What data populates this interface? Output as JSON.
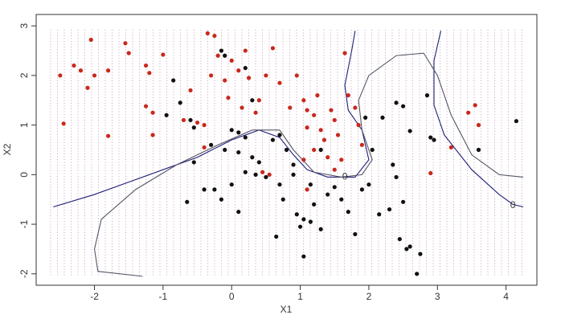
{
  "chart_data": {
    "type": "scatter",
    "xlabel": "X1",
    "ylabel": "X2",
    "xlim": [
      -2.85,
      4.45
    ],
    "ylim": [
      -2.23,
      3.23
    ],
    "xticks": [
      -2,
      -1,
      0,
      1,
      2,
      3,
      4
    ],
    "yticks": [
      -2,
      -1,
      0,
      1,
      2,
      3
    ],
    "series": [
      {
        "color": "#c8281c",
        "x": [
          -2.5,
          -2.45,
          -2.3,
          -2.2,
          -2.05,
          -2.0,
          -2.1,
          -1.8,
          -1.55,
          -1.5,
          -1.25,
          -1.2,
          -1.25,
          -1.15,
          -1.0,
          -1.15,
          -1.8,
          -0.7,
          -0.6,
          -0.5,
          -0.4,
          -0.35,
          -0.25,
          -0.3,
          -0.2,
          -0.1,
          -0.05,
          0.0,
          0.1,
          0.2,
          0.25,
          0.15,
          0.35,
          0.4,
          0.5,
          0.6,
          0.7,
          0.85,
          0.95,
          1.05,
          1.1,
          1.2,
          1.25,
          1.3,
          1.35,
          1.45,
          1.5,
          1.55,
          1.6,
          1.65,
          1.7,
          1.8,
          1.9,
          1.85,
          1.1,
          1.2,
          1.4,
          1.5,
          2.9,
          3.2,
          3.55,
          3.6,
          3.45,
          -0.4,
          0.45,
          1.1,
          1.05,
          0.55
        ],
        "y": [
          2.0,
          1.03,
          2.2,
          2.1,
          2.72,
          2.0,
          1.75,
          2.1,
          2.65,
          2.45,
          2.2,
          2.05,
          1.38,
          1.25,
          2.42,
          0.8,
          0.78,
          1.1,
          1.7,
          1.05,
          1.0,
          2.85,
          2.8,
          2.0,
          2.4,
          1.9,
          1.55,
          2.3,
          2.1,
          2.5,
          1.95,
          1.35,
          1.25,
          1.5,
          2.0,
          2.55,
          1.85,
          1.35,
          2.0,
          1.5,
          1.3,
          1.2,
          1.6,
          0.9,
          0.7,
          1.3,
          1.1,
          0.8,
          0.3,
          2.45,
          1.6,
          1.35,
          0.6,
          1.0,
          0.95,
          0.5,
          0.35,
          0.1,
          0.03,
          0.55,
          1.4,
          1.0,
          1.25,
          0.55,
          0.05,
          -0.3,
          0.3,
          0.0
        ]
      },
      {
        "color": "#111111",
        "x": [
          -0.85,
          -0.75,
          -0.95,
          -0.6,
          -0.55,
          -0.3,
          -0.15,
          -0.1,
          0.2,
          0.3,
          0.0,
          0.1,
          0.2,
          -0.1,
          0.1,
          0.3,
          0.4,
          0.35,
          0.5,
          0.6,
          0.7,
          0.8,
          0.9,
          0.7,
          0.75,
          0.65,
          0.95,
          1.0,
          1.05,
          1.15,
          1.3,
          1.05,
          1.2,
          1.4,
          1.5,
          1.6,
          1.7,
          1.8,
          1.9,
          2.0,
          2.15,
          2.3,
          2.4,
          2.5,
          2.45,
          2.6,
          2.55,
          2.75,
          2.7,
          2.5,
          2.6,
          2.85,
          2.9,
          2.95,
          3.6,
          4.15,
          -0.15,
          0.0,
          -0.25,
          -0.4,
          -0.55,
          -0.65,
          0.1,
          0.2,
          1.95,
          2.2,
          2.4,
          1.3,
          0.9,
          1.15,
          2.05,
          2.35
        ],
        "y": [
          1.9,
          1.45,
          1.2,
          1.1,
          0.95,
          0.6,
          2.5,
          2.4,
          2.15,
          1.5,
          0.9,
          0.85,
          0.75,
          0.5,
          0.45,
          0.35,
          0.25,
          0.0,
          -0.05,
          0.7,
          0.8,
          0.5,
          0.2,
          -0.2,
          -0.5,
          -1.25,
          -0.8,
          -1.05,
          -0.9,
          -0.95,
          -1.1,
          -1.65,
          -0.6,
          -0.4,
          -0.25,
          -0.5,
          -0.75,
          -1.2,
          -0.3,
          -0.2,
          -0.8,
          -0.7,
          -0.05,
          -0.55,
          -1.3,
          -1.45,
          -1.5,
          -1.6,
          -2.0,
          1.38,
          0.88,
          1.6,
          0.75,
          0.7,
          0.5,
          1.08,
          -0.5,
          -0.2,
          -0.3,
          -0.3,
          0.25,
          -0.55,
          -0.75,
          0.05,
          1.15,
          1.15,
          1.45,
          0.5,
          0.0,
          -0.2,
          0.5,
          0.2
        ]
      }
    ],
    "contours": [
      {
        "color": "#1f1f78",
        "x": [
          -2.6,
          -2.0,
          -1.5,
          -1.0,
          -0.5,
          0.0,
          0.4,
          0.7,
          0.9,
          1.1,
          1.4,
          1.8,
          2.0,
          1.9,
          1.7,
          1.65,
          1.75,
          1.8
        ],
        "y": [
          -0.65,
          -0.4,
          -0.15,
          0.1,
          0.35,
          0.7,
          0.9,
          0.75,
          0.4,
          0.1,
          -0.05,
          -0.05,
          0.3,
          0.9,
          1.3,
          1.8,
          2.5,
          2.9
        ]
      },
      {
        "color": "#1f1f78",
        "x": [
          3.05,
          2.95,
          2.95,
          3.1,
          3.5,
          3.9,
          4.1,
          4.25
        ],
        "y": [
          2.9,
          2.3,
          1.4,
          0.8,
          0.1,
          -0.4,
          -0.6,
          -0.65
        ]
      },
      {
        "color": "#555566",
        "x": [
          -1.3,
          -1.95,
          -2.0,
          -1.9,
          -1.4,
          -0.8,
          -0.2,
          0.3,
          0.7,
          0.9,
          1.2,
          1.6,
          1.9,
          2.05,
          1.9,
          1.85,
          2.0,
          2.4,
          2.8,
          3.0,
          3.2,
          3.5,
          3.9,
          4.25
        ],
        "y": [
          -2.05,
          -1.95,
          -1.5,
          -0.9,
          -0.3,
          0.2,
          0.6,
          0.9,
          0.9,
          0.5,
          0.05,
          -0.05,
          0.0,
          0.3,
          0.9,
          1.5,
          2.0,
          2.4,
          2.45,
          2.0,
          1.2,
          0.4,
          0.0,
          -0.05
        ]
      }
    ],
    "contour_labels": [
      {
        "text": "0",
        "x": 1.65,
        "y": -0.05
      },
      {
        "text": "0",
        "x": 4.1,
        "y": -0.62
      }
    ]
  }
}
